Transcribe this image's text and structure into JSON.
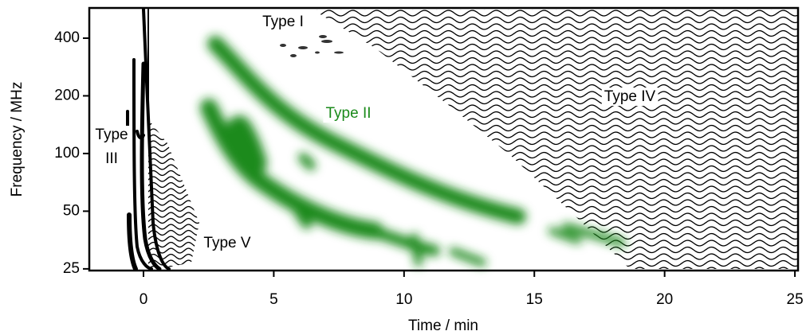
{
  "chart_data": {
    "type": "schematic",
    "xlabel": "Time / min",
    "ylabel": "Frequency / MHz",
    "xlim": [
      -2.08,
      25.12
    ],
    "xticks": [
      0,
      5,
      10,
      15,
      20,
      25
    ],
    "ylim": [
      24.5,
      575
    ],
    "yticks": [
      25,
      50,
      100,
      200,
      400
    ],
    "ylog": true,
    "annotations": [
      {
        "lines": [
          "Type I"
        ],
        "color": "#000000"
      },
      {
        "lines": [
          "Type II"
        ],
        "color": "#1a8a1a"
      },
      {
        "lines": [
          "Type",
          "III"
        ],
        "color": "#000000"
      },
      {
        "lines": [
          "Type IV"
        ],
        "color": "#000000"
      },
      {
        "lines": [
          "Type V"
        ],
        "color": "#000000"
      }
    ]
  }
}
